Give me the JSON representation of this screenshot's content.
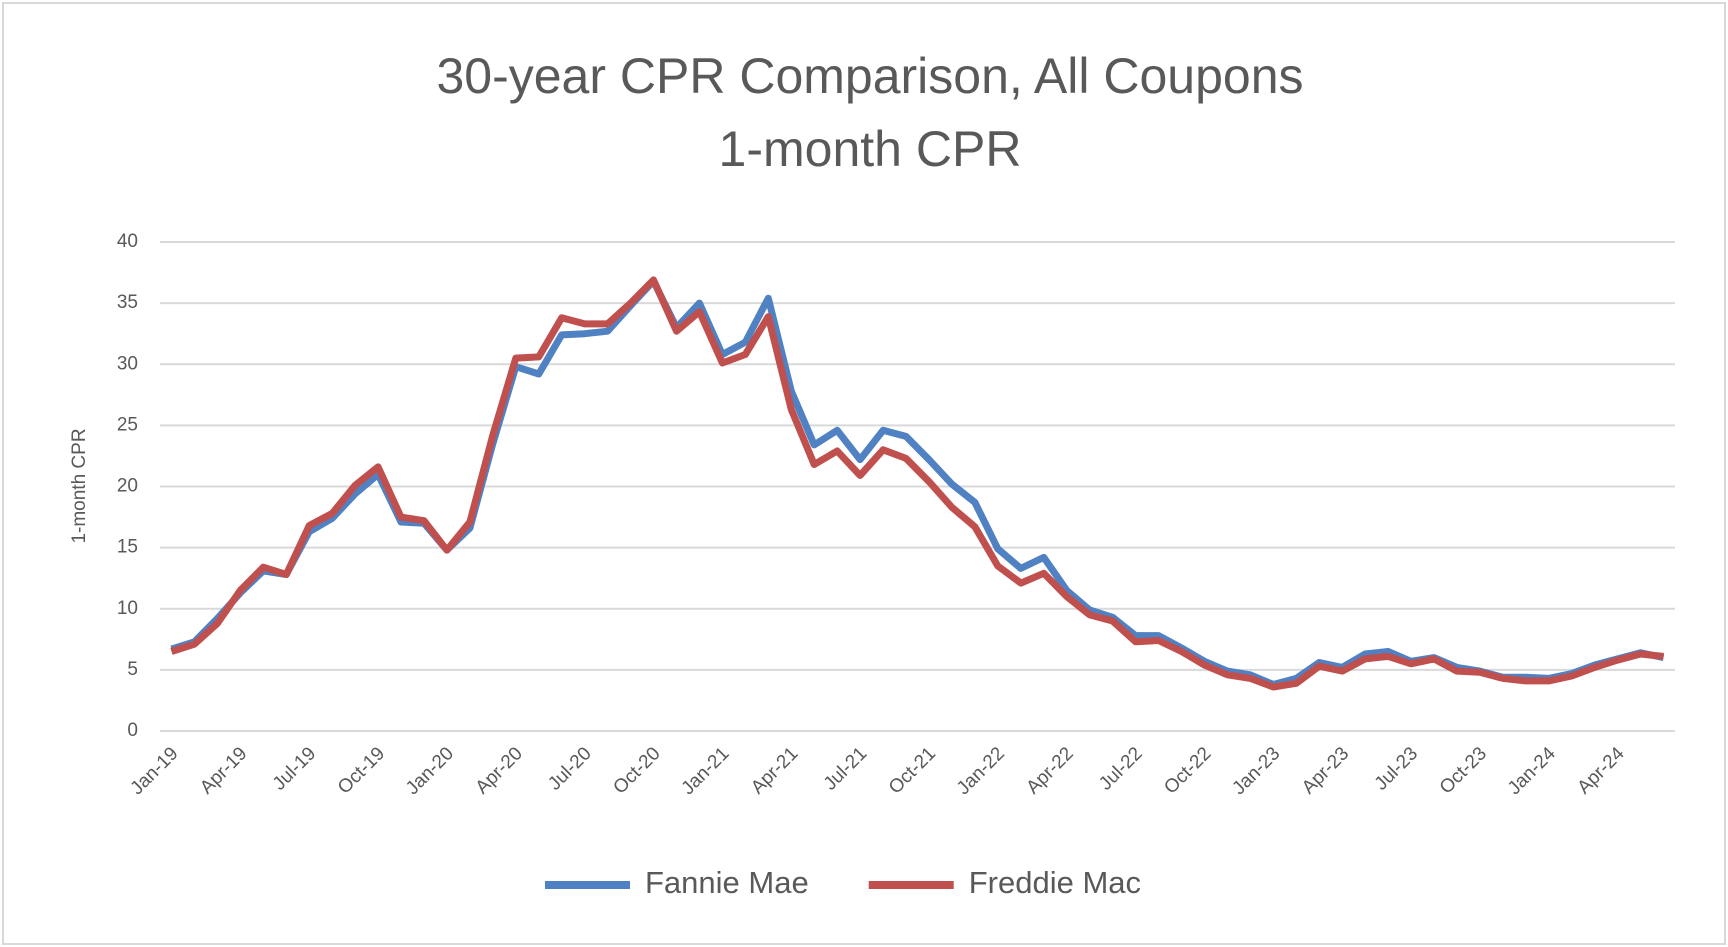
{
  "chart_data": {
    "type": "line",
    "title": "30-year CPR Comparison, All Coupons",
    "subtitle": "1-month CPR",
    "y_label": "1-month CPR",
    "categories": [
      "Jan-19",
      null,
      null,
      "Apr-19",
      null,
      null,
      "Jul-19",
      null,
      null,
      "Oct-19",
      null,
      null,
      "Jan-20",
      null,
      null,
      "Apr-20",
      null,
      null,
      "Jul-20",
      null,
      null,
      "Oct-20",
      null,
      null,
      "Jan-21",
      null,
      null,
      "Apr-21",
      null,
      null,
      "Jul-21",
      null,
      null,
      "Oct-21",
      null,
      null,
      "Jan-22",
      null,
      null,
      "Apr-22",
      null,
      null,
      "Jul-22",
      null,
      null,
      "Oct-22",
      null,
      null,
      "Jan-23",
      null,
      null,
      "Apr-23",
      null,
      null,
      "Jul-23",
      null,
      null,
      "Oct-23",
      null,
      null,
      "Jan-24",
      null,
      null,
      "Apr-24",
      null,
      null
    ],
    "series": [
      {
        "name": "Fannie Mae",
        "color": "#4f81c3",
        "values": [
          6.7,
          7.3,
          9.2,
          11.3,
          13.1,
          12.8,
          16.3,
          17.4,
          19.4,
          21.0,
          17.1,
          17.0,
          14.8,
          16.6,
          23.5,
          29.8,
          29.2,
          32.4,
          32.5,
          32.7,
          34.8,
          36.8,
          33.0,
          35.0,
          30.8,
          31.8,
          35.4,
          27.8,
          23.4,
          24.6,
          22.2,
          24.6,
          24.1,
          22.2,
          20.2,
          18.7,
          14.9,
          13.3,
          14.2,
          11.5,
          9.9,
          9.3,
          7.8,
          7.8,
          6.8,
          5.7,
          4.9,
          4.6,
          3.8,
          4.3,
          5.6,
          5.2,
          6.3,
          6.5,
          5.7,
          6.0,
          5.2,
          4.9,
          4.4,
          4.4,
          4.3,
          4.7,
          5.4,
          5.9,
          6.4,
          6.0
        ]
      },
      {
        "name": "Freddie Mac",
        "color": "#c0504d",
        "values": [
          6.5,
          7.1,
          8.8,
          11.5,
          13.4,
          12.8,
          16.8,
          17.8,
          20.1,
          21.6,
          17.5,
          17.2,
          14.8,
          17.1,
          24.2,
          30.5,
          30.6,
          33.8,
          33.3,
          33.3,
          35.0,
          36.9,
          32.7,
          34.3,
          30.1,
          30.8,
          33.9,
          26.3,
          21.8,
          22.9,
          20.9,
          23.0,
          22.3,
          20.4,
          18.3,
          16.7,
          13.5,
          12.1,
          12.9,
          11.0,
          9.5,
          9.0,
          7.3,
          7.4,
          6.5,
          5.4,
          4.6,
          4.3,
          3.6,
          3.9,
          5.3,
          4.9,
          5.9,
          6.1,
          5.5,
          5.9,
          4.9,
          4.8,
          4.3,
          4.1,
          4.1,
          4.5,
          5.2,
          5.8,
          6.3,
          6.1
        ]
      }
    ],
    "ylim": [
      0,
      40
    ],
    "yticks": [
      0,
      5,
      10,
      15,
      20,
      25,
      30,
      35,
      40
    ],
    "grid": true,
    "legend": "bottom"
  }
}
